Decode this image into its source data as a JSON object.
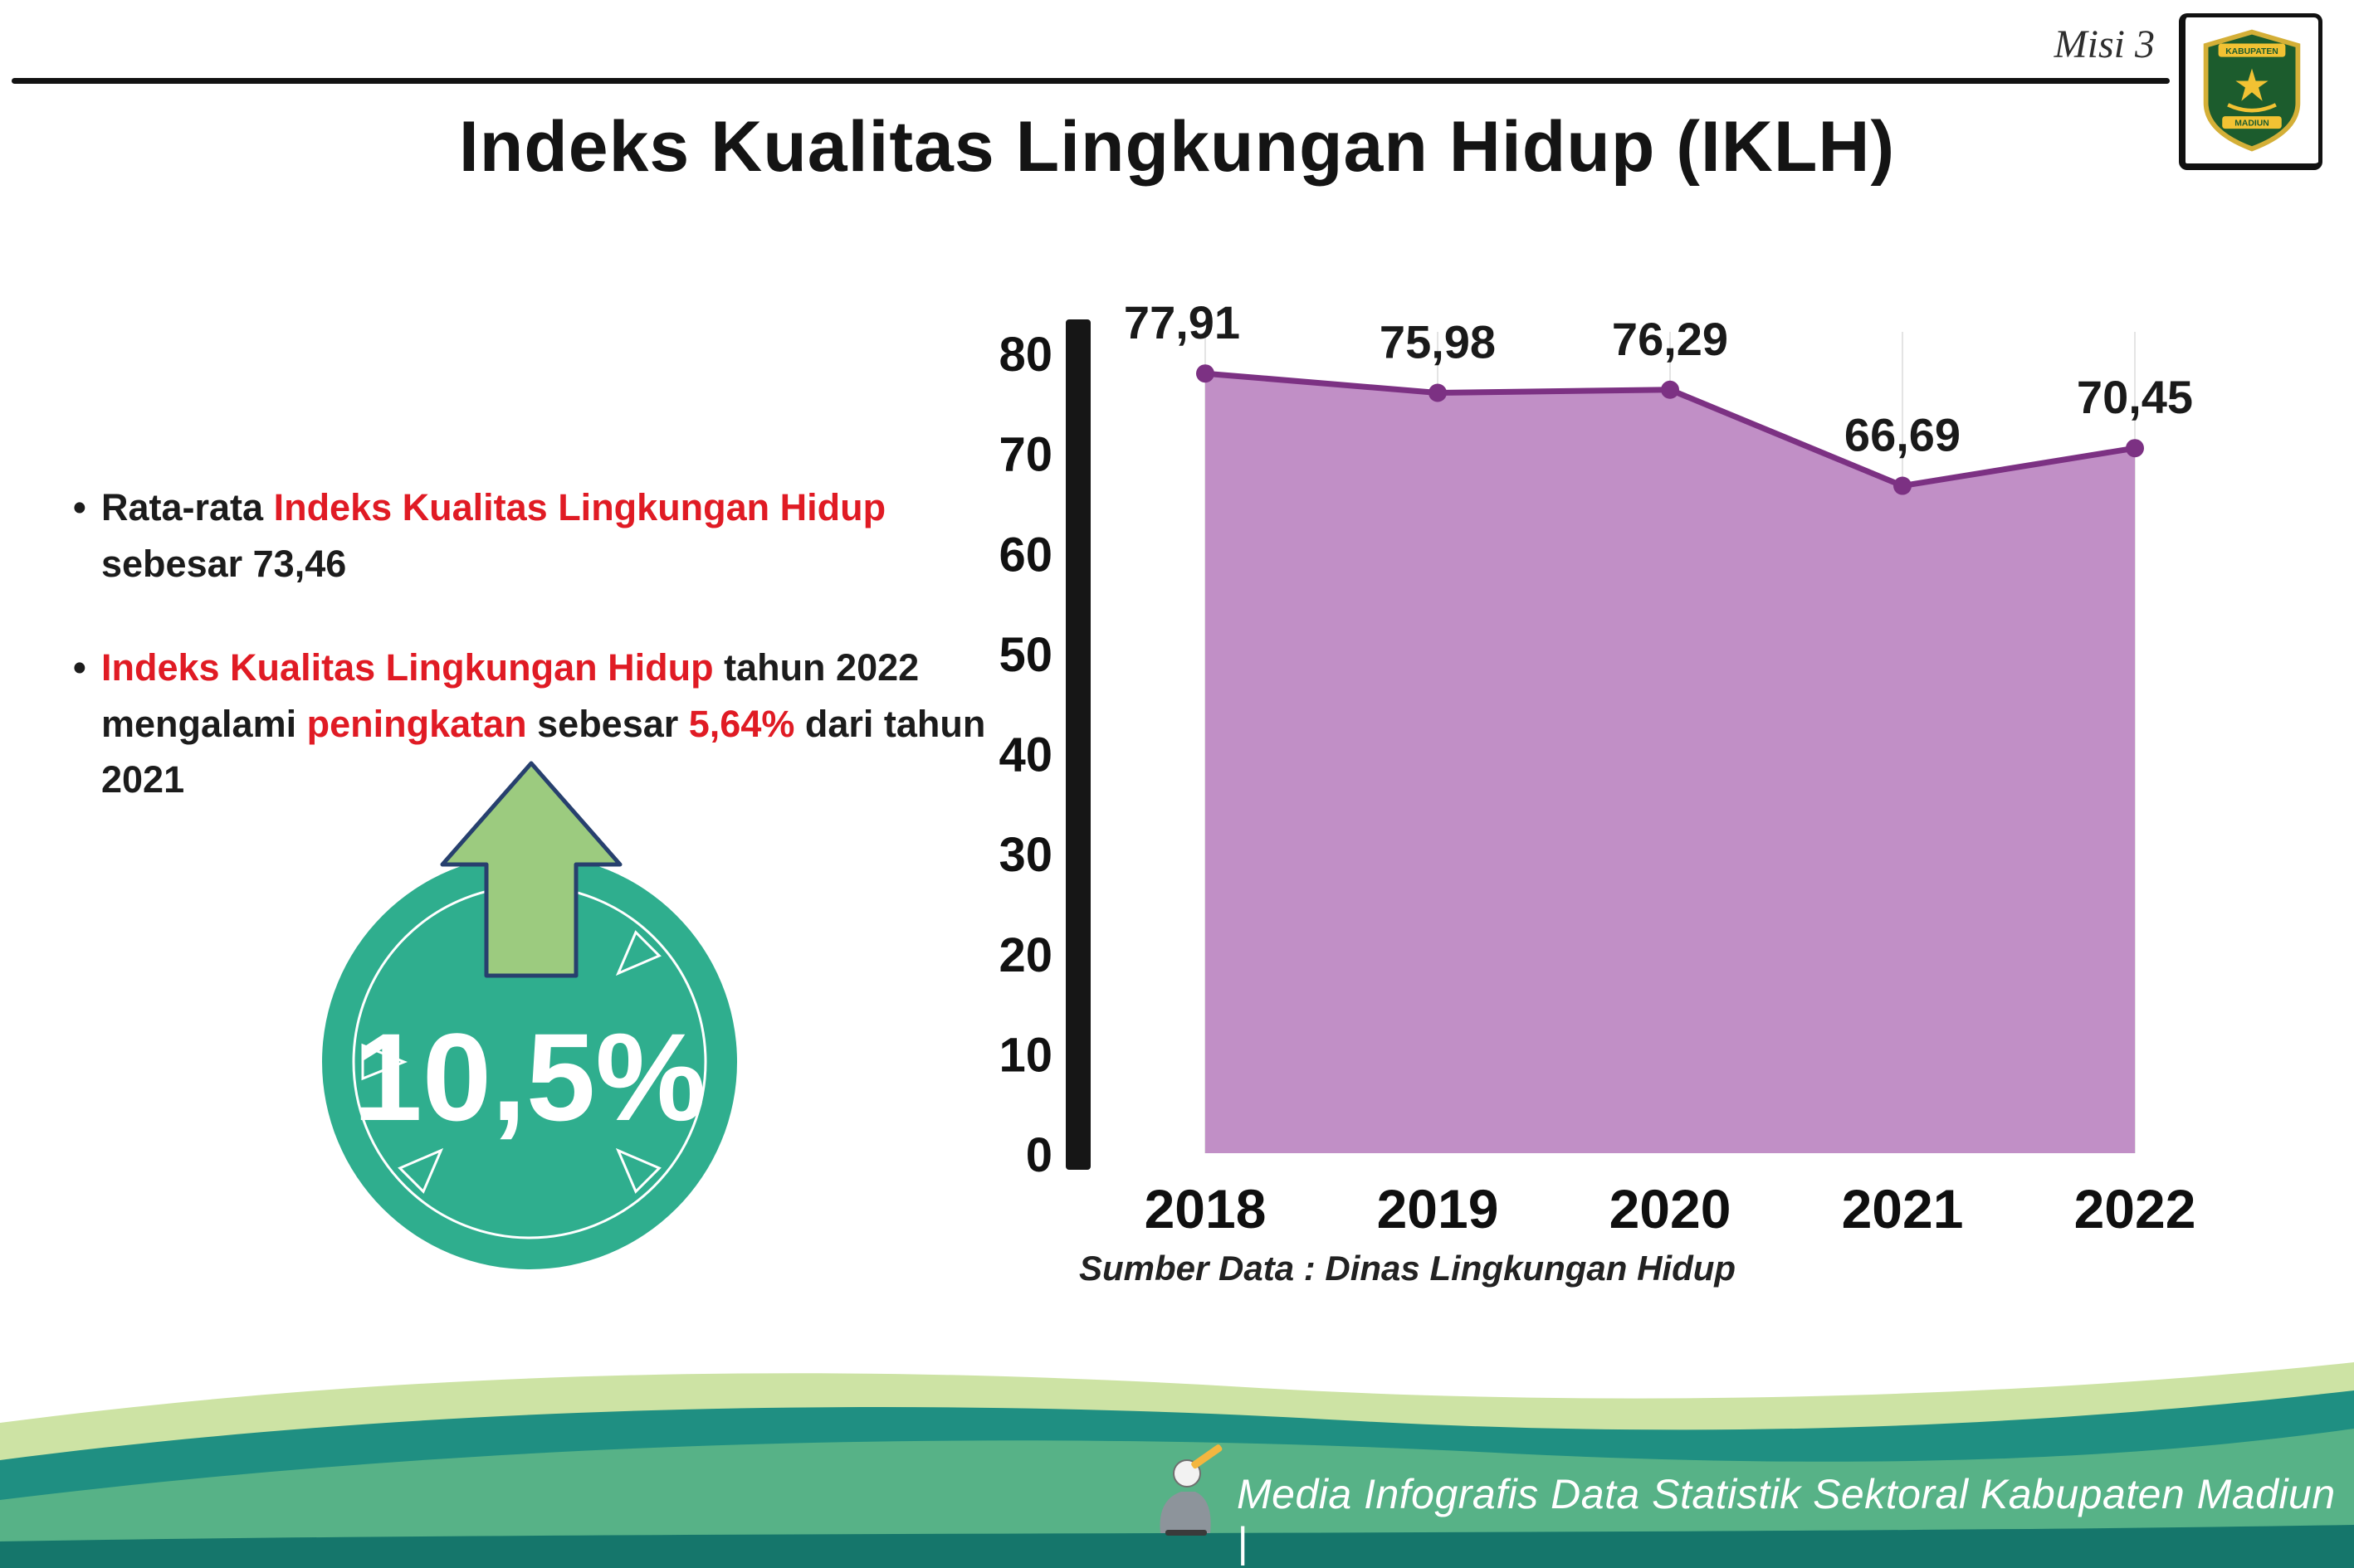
{
  "header": {
    "misi_label": "Misi 3"
  },
  "logo": {
    "top_text": "KABUPATEN",
    "bottom_text": "MADIUN"
  },
  "title": "Indeks Kualitas Lingkungan Hidup (IKLH)",
  "bullets": [
    {
      "segments": [
        {
          "text": "Rata-rata ",
          "red": false
        },
        {
          "text": "Indeks Kualitas Lingkungan Hidup",
          "red": true
        },
        {
          "text": " sebesar 73,46",
          "red": false
        }
      ]
    },
    {
      "segments": [
        {
          "text": "Indeks Kualitas Lingkungan Hidup",
          "red": true
        },
        {
          "text": " tahun 2022 mengalami ",
          "red": false
        },
        {
          "text": "peningkatan",
          "red": true
        },
        {
          "text": " sebesar ",
          "red": false
        },
        {
          "text": "5,64%",
          "red": true
        },
        {
          "text": " dari tahun 2021",
          "red": false
        }
      ]
    }
  ],
  "badge": {
    "value": "10,5%"
  },
  "chart_data": {
    "type": "area",
    "title": "",
    "categories": [
      "2018",
      "2019",
      "2020",
      "2021",
      "2022"
    ],
    "values": [
      77.91,
      75.98,
      76.29,
      66.69,
      70.45
    ],
    "value_labels": [
      "77,91",
      "75,98",
      "76,29",
      "66,69",
      "70,45"
    ],
    "ylim": [
      0,
      80
    ],
    "yticks": [
      0,
      10,
      20,
      30,
      40,
      50,
      60,
      70,
      80
    ],
    "xlabel": "",
    "ylabel": "",
    "grid": true,
    "legend": false,
    "fill_color": "#c18fc6",
    "line_color": "#7c3183",
    "point_color": "#7c3183"
  },
  "source_note": "Sumber Data : Dinas Lingkungan Hidup",
  "footer": {
    "caption": "Media Infografis Data Statistik Sektoral Kabupaten Madiun |"
  },
  "colors": {
    "accent_red": "#e01b24",
    "badge_green": "#2fae8e",
    "arrow_green": "#9ccb7f",
    "footer_lime": "#cde3a4",
    "footer_teal": "#1f8f82",
    "footer_green": "#57b287",
    "footer_deep": "#15766b"
  }
}
